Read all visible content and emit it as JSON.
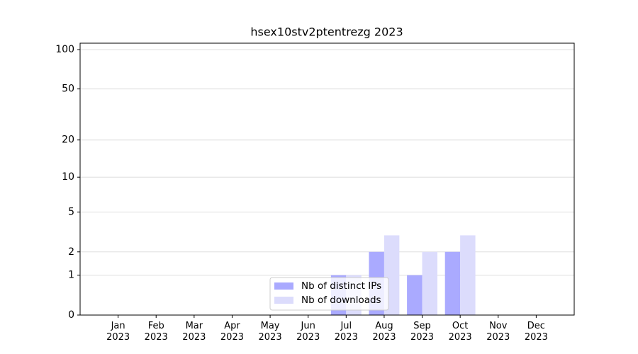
{
  "chart_data": {
    "type": "bar",
    "title": "hsex10stv2ptentrezg 2023",
    "categories": [
      "Jan 2023",
      "Feb 2023",
      "Mar 2023",
      "Apr 2023",
      "May 2023",
      "Jun 2023",
      "Jul 2023",
      "Aug 2023",
      "Sep 2023",
      "Oct 2023",
      "Nov 2023",
      "Dec 2023"
    ],
    "series": [
      {
        "name": "Nb of distinct IPs",
        "color": "#aaaaff",
        "values": [
          0,
          0,
          0,
          0,
          0,
          0,
          1,
          2,
          1,
          2,
          0,
          0
        ]
      },
      {
        "name": "Nb of downloads",
        "color": "#dcdcfc",
        "values": [
          0,
          0,
          0,
          0,
          0,
          0,
          1,
          3,
          2,
          3,
          0,
          0
        ]
      }
    ],
    "yscale": "log1p",
    "ylim": [
      0,
      112
    ],
    "yticks": [
      0,
      1,
      2,
      5,
      10,
      20,
      50,
      100
    ],
    "grid": true,
    "legend": "lower center"
  }
}
